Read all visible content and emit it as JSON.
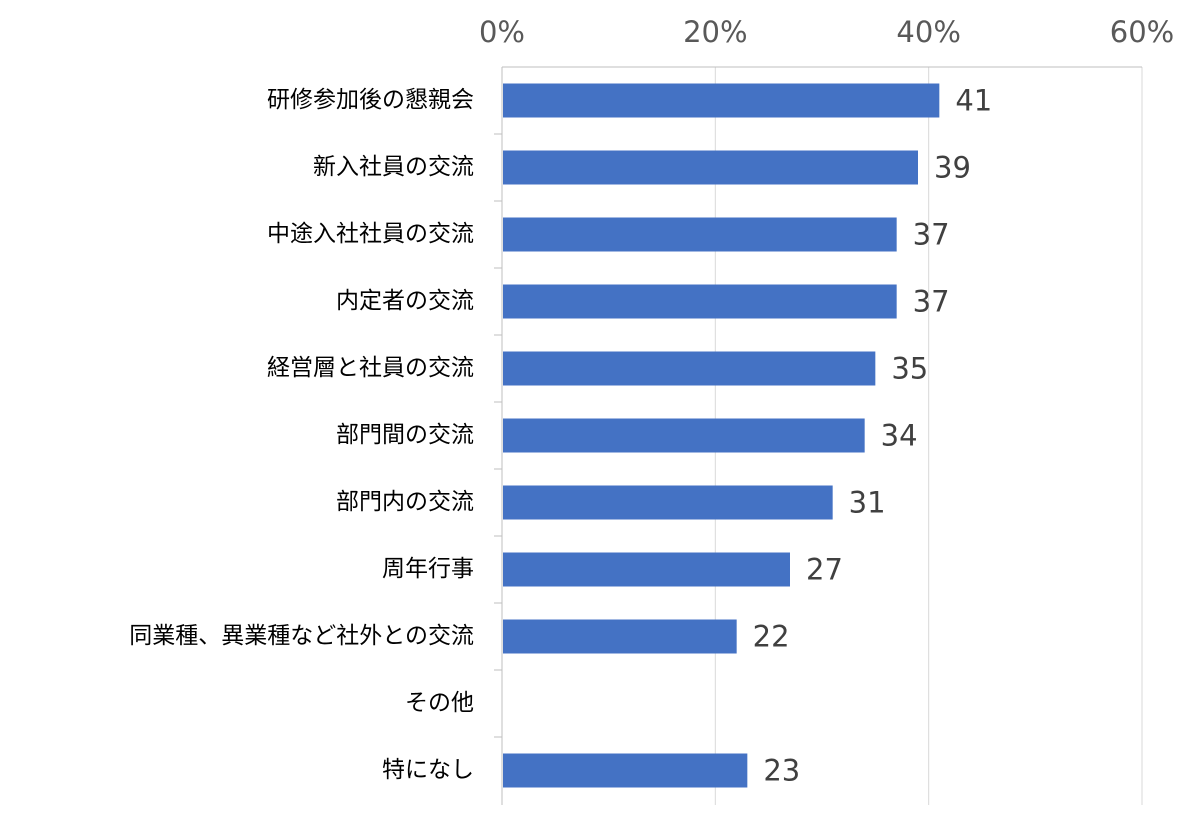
{
  "chart_data": {
    "type": "bar",
    "orientation": "horizontal",
    "categories": [
      "研修参加後の懇親会",
      "新入社員の交流",
      "中途入社社員の交流",
      "内定者の交流",
      "経営層と社員の交流",
      "部門間の交流",
      "部門内の交流",
      "周年行事",
      "同業種、異業種など社外との交流",
      "その他",
      "特になし"
    ],
    "values": [
      41,
      39,
      37,
      37,
      35,
      34,
      31,
      27,
      22,
      null,
      23
    ],
    "data_labels": [
      "41",
      "39",
      "37",
      "37",
      "35",
      "34",
      "31",
      "27",
      "22",
      "",
      "23"
    ],
    "xlim": [
      0,
      60
    ],
    "x_ticks": [
      0,
      20,
      40,
      60
    ],
    "x_tick_labels": [
      "0%",
      "20%",
      "40%",
      "60%"
    ],
    "x_axis_position": "top",
    "grid": true,
    "legend": "none",
    "colors": {
      "bar": "#4472C4",
      "grid": "#D9D9D9",
      "axis": "#BFBFBF",
      "tick_text": "#595959",
      "category_text": "#000000",
      "value_text": "#404040"
    }
  }
}
